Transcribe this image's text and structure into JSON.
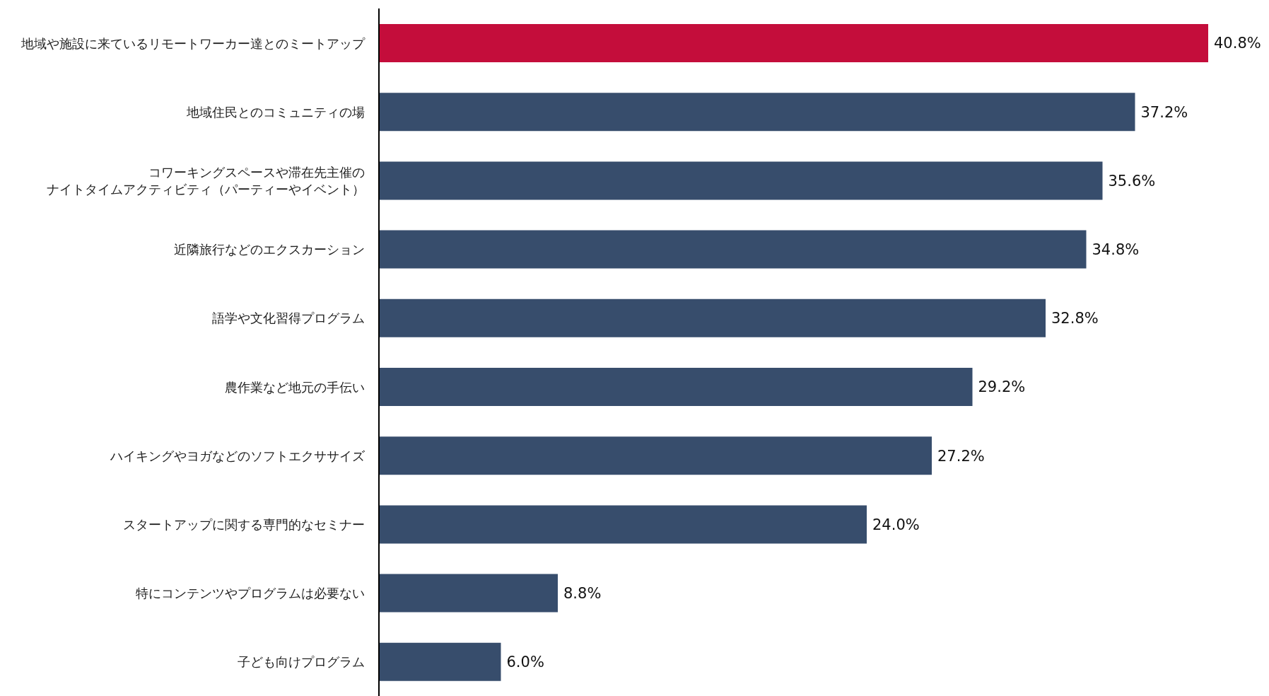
{
  "chart_data": {
    "type": "bar",
    "orientation": "horizontal",
    "categories": [
      "地域や施設に来ているリモートワーカー達とのミートアップ",
      "地域住民とのコミュニティの場",
      "コワーキングスペースや滞在先主催のナイトタイムアクティビティ（パーティーやイベント）",
      "近隣旅行などのエクスカーション",
      "語学や文化習得プログラム",
      "農作業など地元の手伝い",
      "ハイキングやヨガなどのソフトエクササイズ",
      "スタートアップに関する専門的なセミナー",
      "特にコンテンツやプログラムは必要ない",
      "子ども向けプログラム"
    ],
    "values": [
      40.8,
      37.2,
      35.6,
      34.8,
      32.8,
      29.2,
      27.2,
      24.0,
      8.8,
      6.0
    ],
    "value_labels": [
      "40.8%",
      "37.2%",
      "35.6%",
      "34.8%",
      "32.8%",
      "29.2%",
      "27.2%",
      "24.0%",
      "8.8%",
      "6.0%"
    ],
    "colors": [
      "#c40d3b",
      "#374d6c",
      "#374d6c",
      "#374d6c",
      "#374d6c",
      "#374d6c",
      "#374d6c",
      "#374d6c",
      "#374d6c",
      "#374d6c"
    ]
  }
}
